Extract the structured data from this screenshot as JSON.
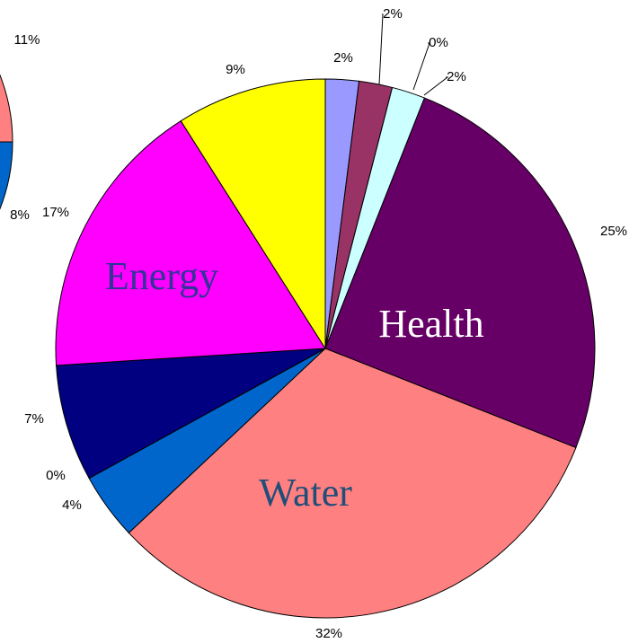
{
  "chart_data": [
    {
      "type": "pie",
      "categories": [
        null,
        null,
        null,
        null,
        "Health",
        "Water",
        null,
        null,
        null,
        "Energy",
        null
      ],
      "values": [
        2,
        2,
        0,
        2,
        25,
        32,
        4,
        0,
        7,
        17,
        9
      ],
      "value_labels": [
        "2%",
        "2%",
        "0%",
        "2%",
        "25%",
        "32%",
        "4%",
        "0%",
        "7%",
        "17%",
        "9%"
      ],
      "colors": [
        "#9999ff",
        "#993366",
        "#ffffcc",
        "#ccffff",
        "#660066",
        "#ff8080",
        "#0066cc",
        "#ff6600",
        "#000080",
        "#ff00ff",
        "#ffff00"
      ]
    },
    {
      "type": "pie",
      "values": [
        11,
        8
      ],
      "value_labels": [
        "11%",
        "8%"
      ],
      "colors": [
        "#ff8080",
        "#0066cc"
      ]
    }
  ]
}
